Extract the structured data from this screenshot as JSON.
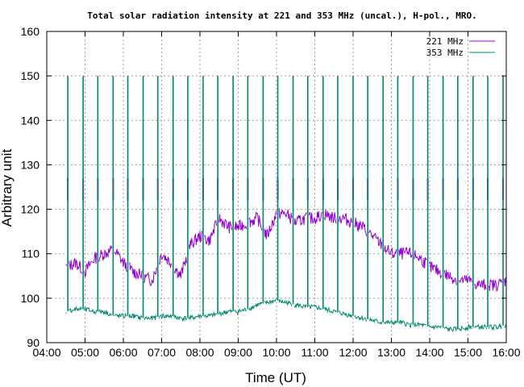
{
  "chart_data": {
    "type": "line",
    "title": "Total solar radiation intensity at 221 and 353 MHz (uncal.), H-pol., MRO.",
    "xlabel": "Time (UT)",
    "ylabel": "Arbitrary unit",
    "xlim": [
      "04:00",
      "16:00"
    ],
    "ylim": [
      90,
      160
    ],
    "xticks": [
      "04:00",
      "05:00",
      "06:00",
      "07:00",
      "08:00",
      "09:00",
      "10:00",
      "11:00",
      "12:00",
      "13:00",
      "14:00",
      "15:00",
      "16:00"
    ],
    "yticks": [
      90,
      100,
      110,
      120,
      130,
      140,
      150,
      160
    ],
    "grid": true,
    "legend_position": "top-right",
    "series": [
      {
        "name": "221 MHz",
        "color": "#9400d3",
        "x": [
          "04:30",
          "04:45",
          "05:00",
          "05:15",
          "05:30",
          "05:45",
          "06:00",
          "06:15",
          "06:30",
          "06:45",
          "07:00",
          "07:15",
          "07:30",
          "07:45",
          "08:00",
          "08:15",
          "08:30",
          "08:45",
          "09:00",
          "09:15",
          "09:30",
          "09:45",
          "10:00",
          "10:15",
          "10:30",
          "10:45",
          "11:00",
          "11:15",
          "11:30",
          "11:45",
          "12:00",
          "12:15",
          "12:30",
          "12:45",
          "13:00",
          "13:15",
          "13:30",
          "13:45",
          "14:00",
          "14:15",
          "14:30",
          "14:45",
          "15:00",
          "15:15",
          "15:30",
          "15:45",
          "16:00"
        ],
        "values": [
          107,
          108,
          106,
          109,
          110,
          111,
          108,
          106,
          105,
          104,
          110,
          108,
          105,
          112,
          114,
          113,
          118,
          116,
          116,
          117,
          118,
          114,
          119,
          119,
          117,
          118,
          118,
          119,
          118,
          118,
          117,
          116,
          114,
          112,
          110,
          110,
          110,
          109,
          107,
          106,
          105,
          104,
          104,
          103,
          103,
          103,
          104
        ]
      },
      {
        "name": "353 MHz",
        "color": "#00886e",
        "x": [
          "04:30",
          "04:45",
          "05:00",
          "05:15",
          "05:30",
          "05:45",
          "06:00",
          "06:15",
          "06:30",
          "06:45",
          "07:00",
          "07:15",
          "07:30",
          "07:45",
          "08:00",
          "08:15",
          "08:30",
          "08:45",
          "09:00",
          "09:15",
          "09:30",
          "09:45",
          "10:00",
          "10:15",
          "10:30",
          "10:45",
          "11:00",
          "11:15",
          "11:30",
          "11:45",
          "12:00",
          "12:15",
          "12:30",
          "12:45",
          "13:00",
          "13:15",
          "13:30",
          "13:45",
          "14:00",
          "14:15",
          "14:30",
          "14:45",
          "15:00",
          "15:15",
          "15:30",
          "15:45",
          "16:00"
        ],
        "values": [
          97,
          97.5,
          97.5,
          97,
          97,
          96,
          96,
          96,
          95.5,
          95.5,
          96,
          96,
          95.5,
          95.5,
          96,
          96,
          96.5,
          97,
          97,
          97.5,
          98.5,
          99,
          99.5,
          99,
          98.5,
          98,
          98,
          97.5,
          97,
          96.5,
          96,
          95.5,
          95,
          94.5,
          94.5,
          94.5,
          94,
          94,
          93.5,
          93.5,
          93,
          93,
          93.5,
          93.5,
          93.5,
          93.5,
          94
        ]
      }
    ],
    "calibration_spikes": {
      "221 MHz": {
        "top": 127,
        "base": 122
      },
      "353 MHz": {
        "top": 150
      },
      "times": [
        "04:33",
        "04:57",
        "05:20",
        "05:44",
        "06:07",
        "06:31",
        "06:54",
        "07:18",
        "07:41",
        "08:05",
        "08:28",
        "08:52",
        "09:15",
        "09:39",
        "10:02",
        "10:26",
        "10:49",
        "11:13",
        "11:36",
        "12:00",
        "12:23",
        "12:47",
        "13:10",
        "13:34",
        "13:57",
        "14:21",
        "14:44",
        "15:08",
        "15:31",
        "15:55"
      ]
    }
  }
}
